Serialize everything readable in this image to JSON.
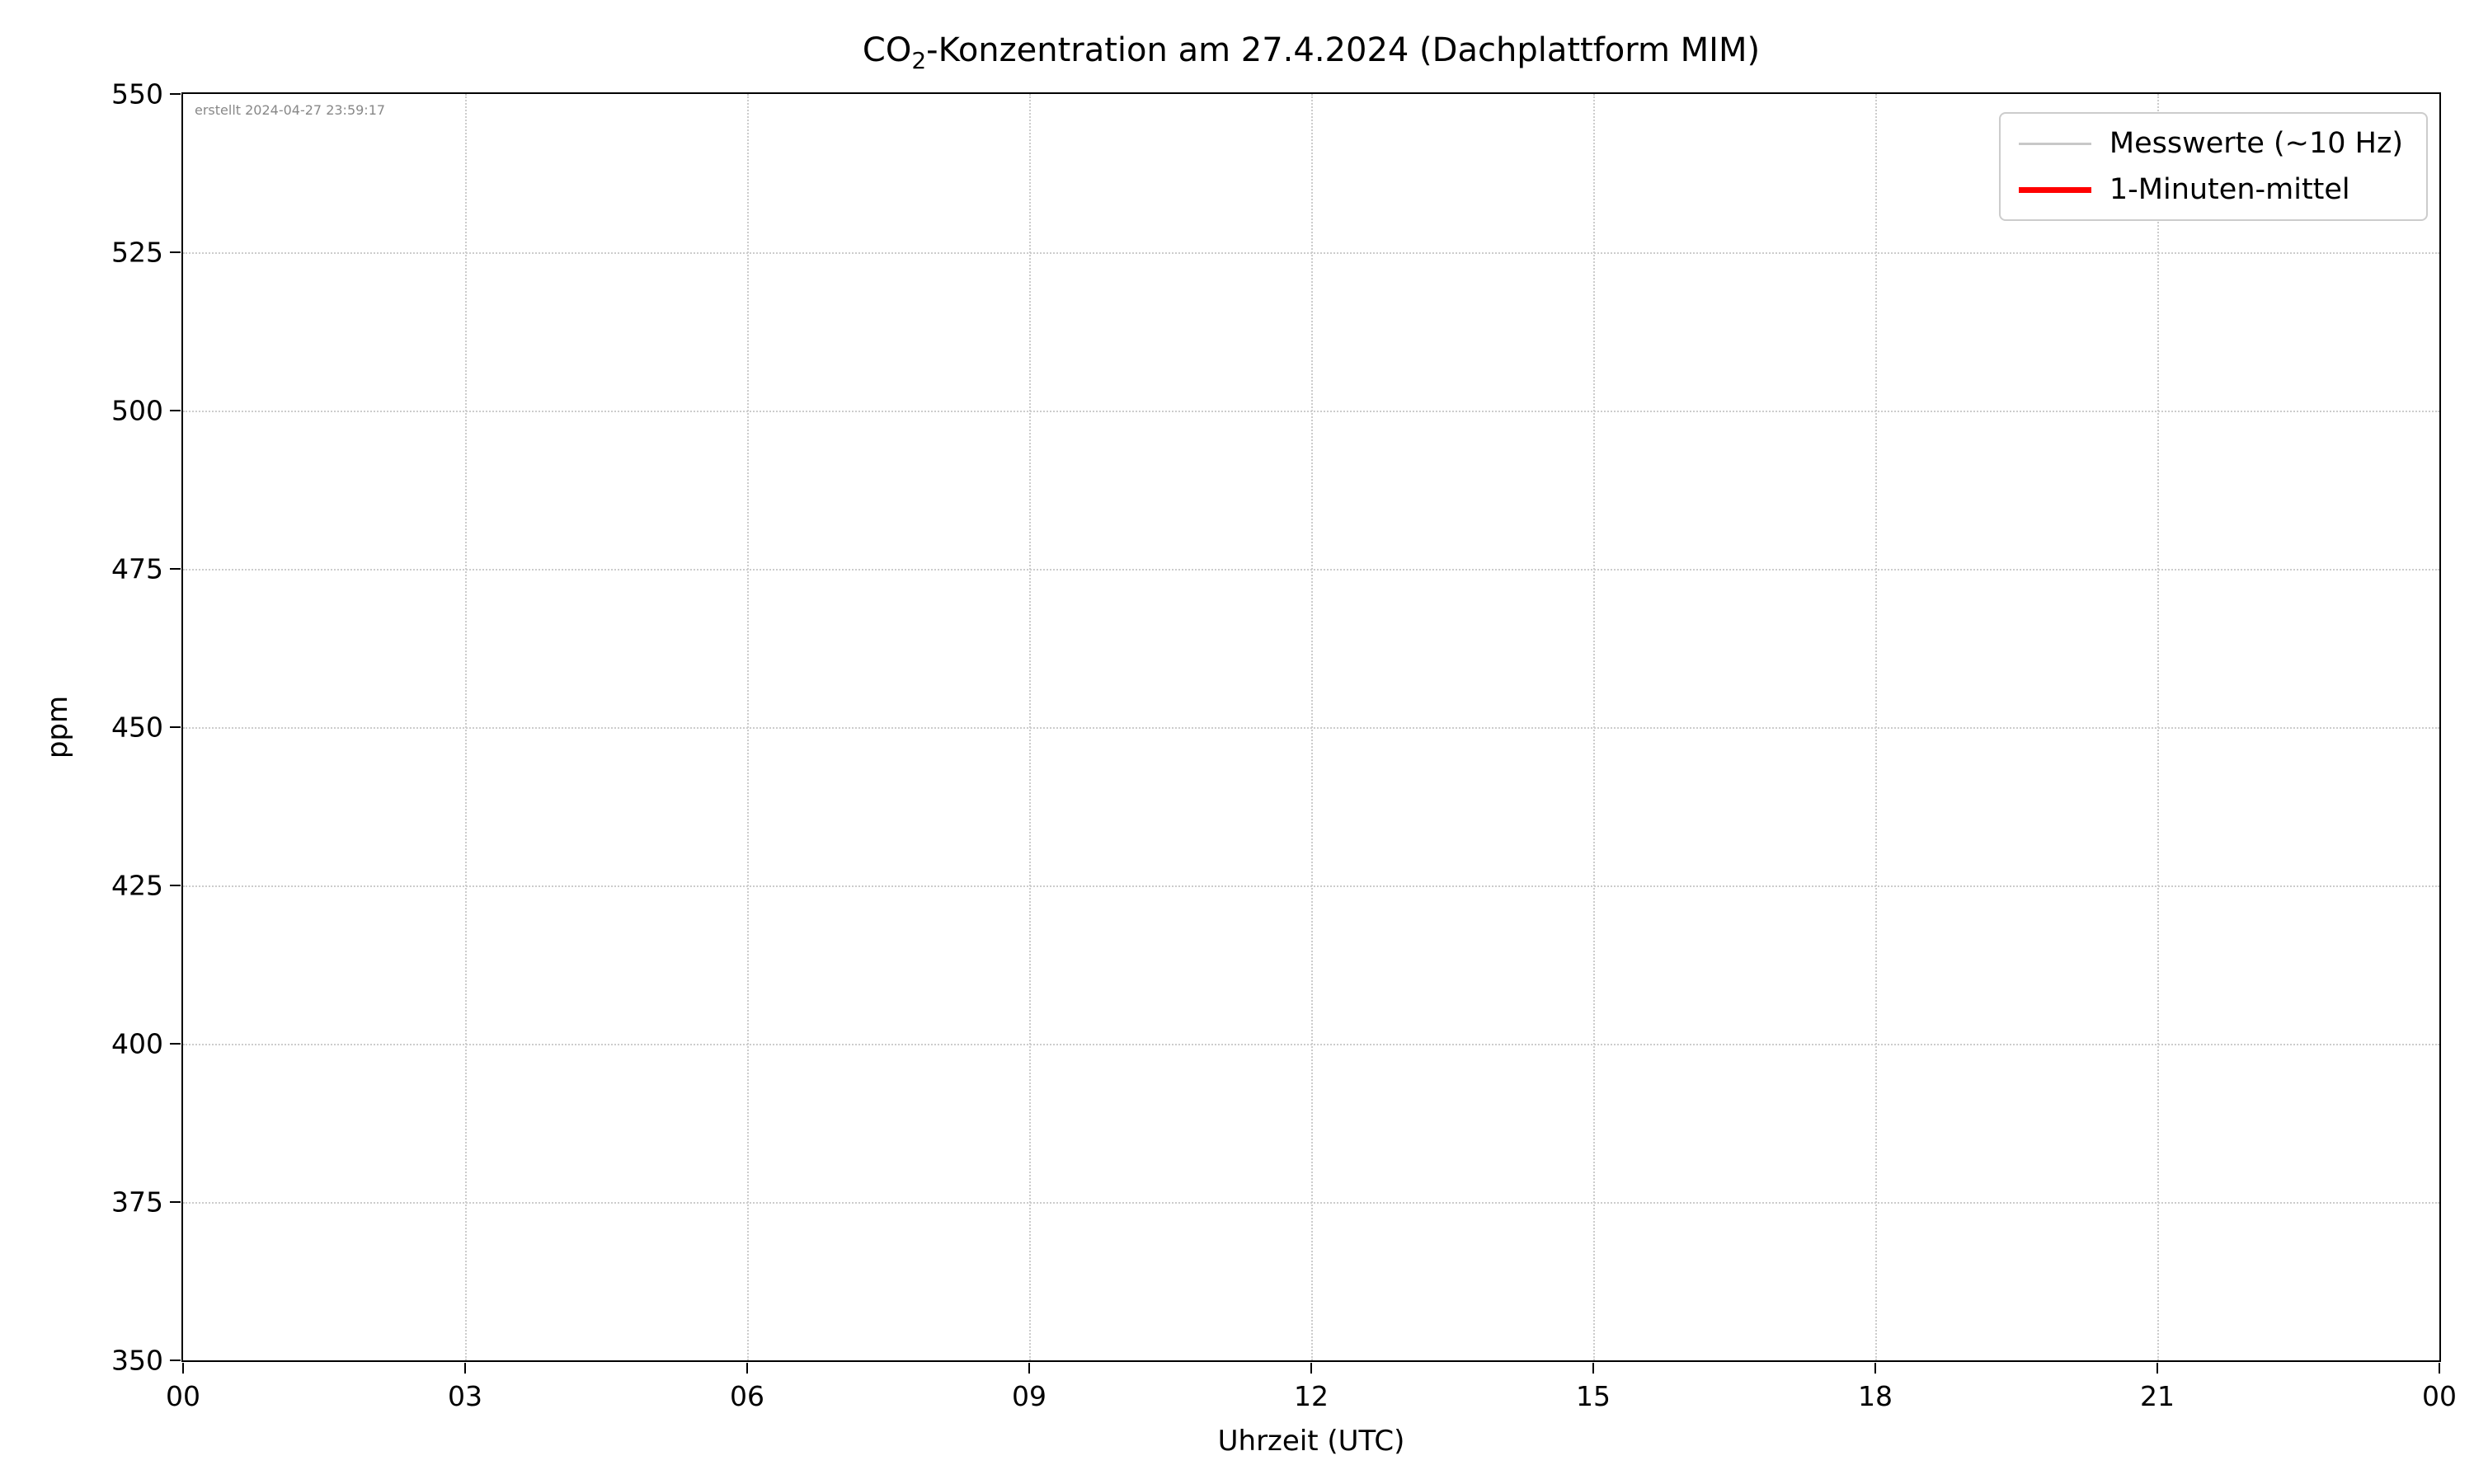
{
  "chart_data": {
    "type": "line",
    "title": "CO2-Konzentration am 27.4.2024 (Dachplattform MIM)",
    "title_prefix": "CO",
    "title_sub": "2",
    "title_suffix": "-Konzentration am 27.4.2024 (Dachplattform MIM)",
    "xlabel": "Uhrzeit (UTC)",
    "ylabel": "ppm",
    "x_ticks": [
      "00",
      "03",
      "06",
      "09",
      "12",
      "15",
      "18",
      "21",
      "00"
    ],
    "y_ticks": [
      "350",
      "375",
      "400",
      "425",
      "450",
      "475",
      "500",
      "525",
      "550"
    ],
    "ylim": [
      350,
      550
    ],
    "xlim_hours": [
      0,
      24
    ],
    "grid": true,
    "grid_style": "dotted",
    "grid_color": "#cccccc",
    "legend_position": "top-right",
    "annotation": "erstellt 2024-04-27 23:59:17",
    "series": [
      {
        "name": "Messwerte (~10 Hz)",
        "color": "#c8c8c8",
        "style": "thin",
        "values": []
      },
      {
        "name": "1-Minuten-mittel",
        "color": "#ff0000",
        "style": "thick",
        "values": []
      }
    ]
  }
}
